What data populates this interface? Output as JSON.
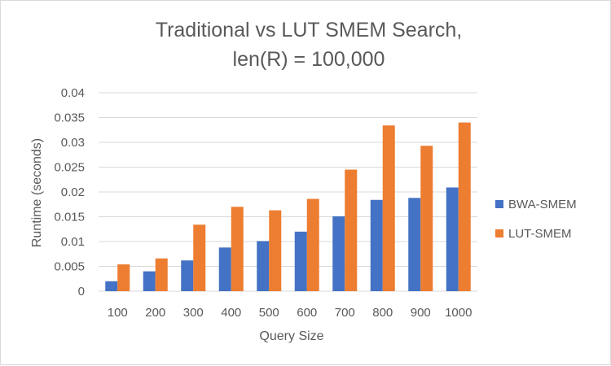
{
  "chart_data": {
    "type": "bar",
    "title_lines": [
      "Traditional vs LUT SMEM Search,",
      "len(R) = 100,000"
    ],
    "xlabel": "Query Size",
    "ylabel": "Runtime (seconds)",
    "categories": [
      "100",
      "200",
      "300",
      "400",
      "500",
      "600",
      "700",
      "800",
      "900",
      "1000"
    ],
    "ylim": [
      0,
      0.04
    ],
    "yticks": [
      0,
      0.005,
      0.01,
      0.015,
      0.02,
      0.025,
      0.03,
      0.035,
      0.04
    ],
    "ytick_labels": [
      "0",
      "0.005",
      "0.01",
      "0.015",
      "0.02",
      "0.025",
      "0.03",
      "0.035",
      "0.04"
    ],
    "grid": true,
    "legend_position": "right",
    "series": [
      {
        "name": "BWA-SMEM",
        "color": "#4472c4",
        "values": [
          0.002,
          0.004,
          0.0062,
          0.0088,
          0.0101,
          0.012,
          0.0151,
          0.0184,
          0.0188,
          0.0209
        ]
      },
      {
        "name": "LUT-SMEM",
        "color": "#ed7d31",
        "values": [
          0.0054,
          0.0066,
          0.0134,
          0.017,
          0.0163,
          0.0186,
          0.0245,
          0.0334,
          0.0293,
          0.034
        ]
      }
    ]
  }
}
